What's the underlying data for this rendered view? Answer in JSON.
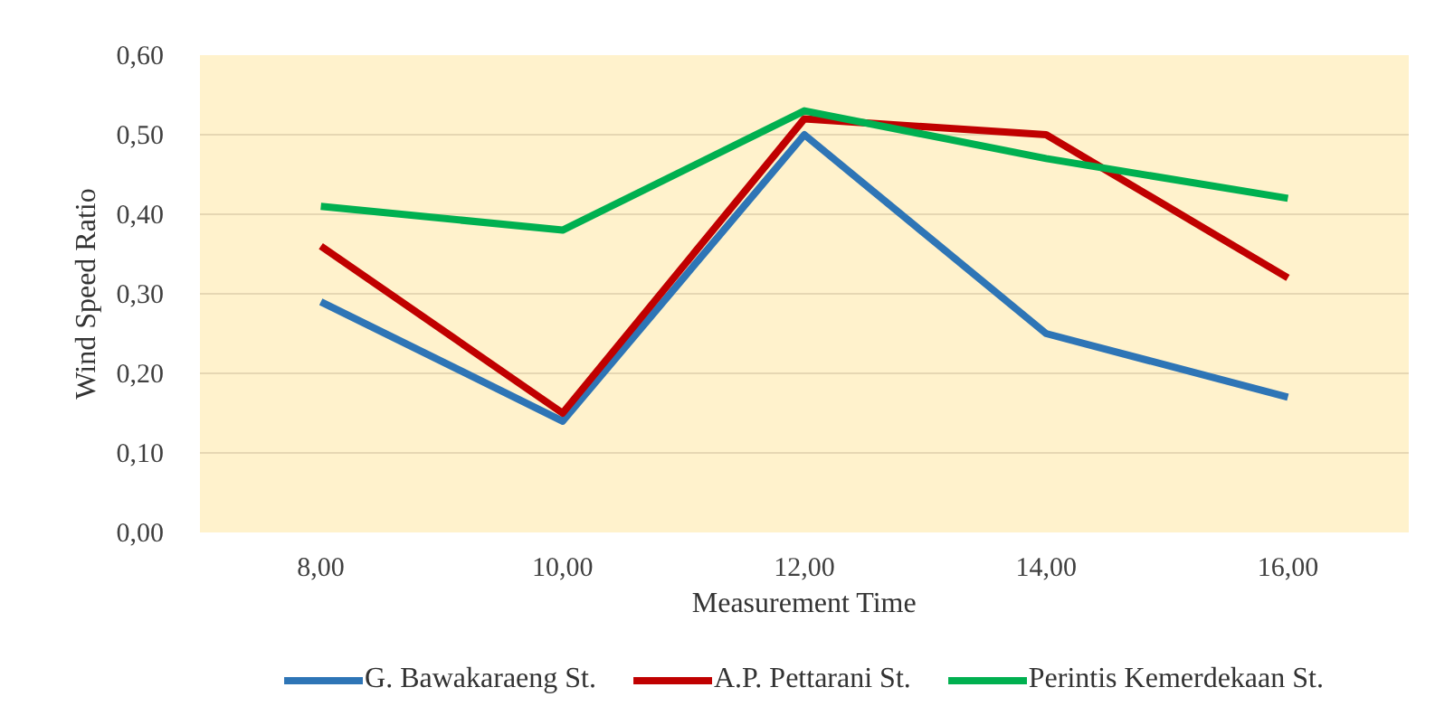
{
  "chart_data": {
    "type": "line",
    "xlabel": "Measurement Time",
    "ylabel": "Wind Speed Ratio",
    "categories": [
      "8,00",
      "10,00",
      "12,00",
      "14,00",
      "16,00"
    ],
    "series": [
      {
        "name": "G. Bawakaraeng St.",
        "color": "#2e75b6",
        "values": [
          0.29,
          0.14,
          0.5,
          0.25,
          0.17
        ]
      },
      {
        "name": "A.P. Pettarani St.",
        "color": "#c00000",
        "values": [
          0.36,
          0.15,
          0.52,
          0.5,
          0.32
        ]
      },
      {
        "name": "Perintis Kemerdekaan St.",
        "color": "#00b050",
        "values": [
          0.41,
          0.38,
          0.53,
          0.47,
          0.42
        ]
      }
    ],
    "ylim": [
      0,
      0.6
    ],
    "yticks": [
      {
        "value": 0,
        "label": "0,00"
      },
      {
        "value": 0.1,
        "label": "0,10"
      },
      {
        "value": 0.2,
        "label": "0,20"
      },
      {
        "value": 0.3,
        "label": "0,30"
      },
      {
        "value": 0.4,
        "label": "0,40"
      },
      {
        "value": 0.5,
        "label": "0,50"
      },
      {
        "value": 0.6,
        "label": "0,60"
      }
    ],
    "grid": "y",
    "legend": "bottom",
    "marker": "none",
    "line_style": "solid"
  }
}
